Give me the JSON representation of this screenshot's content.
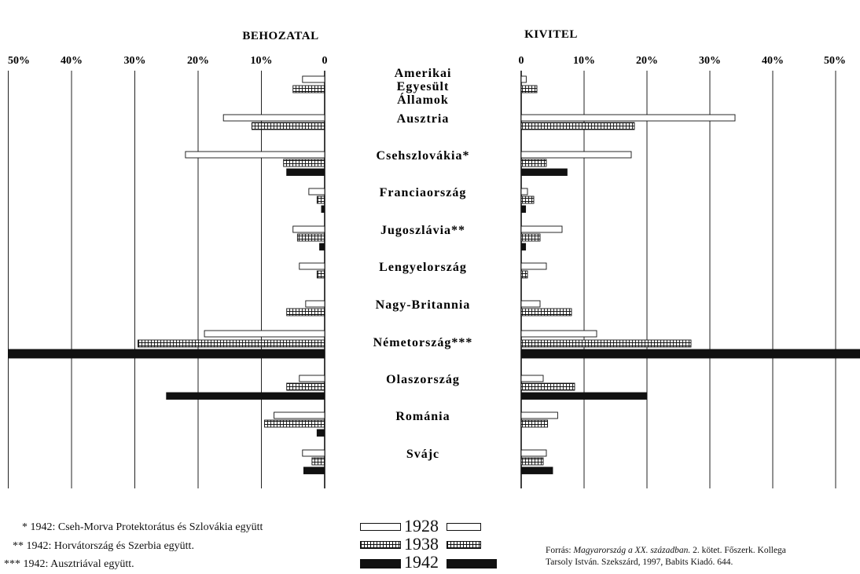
{
  "chart_data": {
    "type": "bar",
    "orientation": "horizontal-butterfly",
    "titles": {
      "left": "BEHOZATAL",
      "right": "KIVITEL"
    },
    "xlim": [
      0,
      50
    ],
    "ticks": [
      "50%",
      "40%",
      "30%",
      "20%",
      "10%",
      "0"
    ],
    "ticks_right": [
      "0",
      "10%",
      "20%",
      "30%",
      "40%",
      "50%"
    ],
    "categories": [
      [
        "Amerikai",
        "Egyesült",
        "Államok"
      ],
      [
        "Ausztria"
      ],
      [
        "Csehszlovákia*"
      ],
      [
        "Franciaország"
      ],
      [
        "Jugoszlávia**"
      ],
      [
        "Lengyelország"
      ],
      [
        "Nagy-Britannia"
      ],
      [
        "Németország***"
      ],
      [
        "Olaszország"
      ],
      [
        "Románia"
      ],
      [
        "Svájc"
      ]
    ],
    "series": [
      {
        "name": "1928",
        "style": "white",
        "import": [
          3.5,
          16,
          22,
          2.5,
          5,
          4,
          3,
          19,
          4,
          8,
          3.5
        ],
        "export": [
          0.8,
          34,
          17.5,
          1,
          6.5,
          4,
          3,
          12,
          3.5,
          5.8,
          4
        ]
      },
      {
        "name": "1938",
        "style": "hatched",
        "import": [
          5,
          11.5,
          6.5,
          1.2,
          4.3,
          1.2,
          6,
          29.5,
          6,
          9.5,
          2
        ],
        "export": [
          2.5,
          18,
          4,
          2,
          3,
          1,
          8,
          27,
          8.5,
          4.2,
          3.5
        ]
      },
      {
        "name": "1942",
        "style": "black",
        "import": [
          0,
          0,
          6,
          0.5,
          0.8,
          0,
          0,
          50,
          25,
          1.2,
          3.3
        ],
        "export": [
          0,
          0,
          7.3,
          0.7,
          0.7,
          0,
          0,
          54,
          20,
          0,
          5
        ]
      }
    ]
  },
  "footnotes": [
    "* 1942: Cseh-Morva Protektorátus és Szlovákia együtt",
    "** 1942: Horvátország és Szerbia együtt.",
    "*** 1942: Ausztriával együtt."
  ],
  "source": {
    "prefix": "Forrás: ",
    "book": "Magyarország a XX. században.",
    "rest1": " 2. kötet. Főszerk. Kollega",
    "line2": "Tarsoly István. Szekszárd, 1997, Babits Kiadó. 644."
  },
  "colors": {
    "ink": "#111111",
    "paper": "#ffffff",
    "grid": "#222222"
  }
}
